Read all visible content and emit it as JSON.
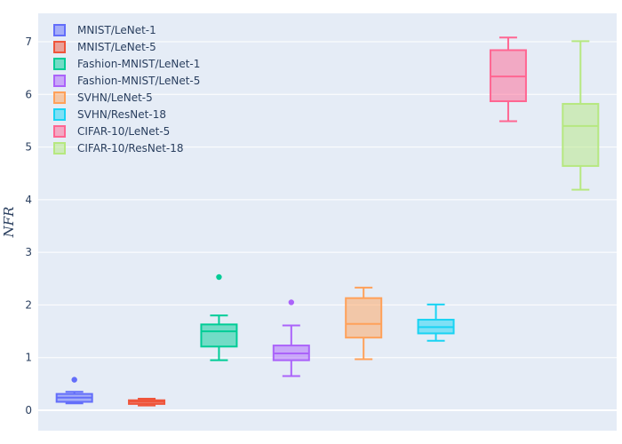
{
  "chart_data": {
    "type": "box",
    "title": "",
    "xlabel": "",
    "ylabel": "NFR",
    "ylim": [
      -0.35,
      7.5
    ],
    "y_ticks": [
      0,
      1,
      2,
      3,
      4,
      5,
      6,
      7
    ],
    "grid": true,
    "legend_position": "top-left",
    "series": [
      {
        "name": "MNIST/LeNet-1",
        "color": "#636efa",
        "min": 0.13,
        "q1": 0.16,
        "median": 0.24,
        "q3": 0.31,
        "max": 0.35,
        "outliers": [
          0.58
        ]
      },
      {
        "name": "MNIST/LeNet-5",
        "color": "#ef553b",
        "min": 0.09,
        "q1": 0.12,
        "median": 0.16,
        "q3": 0.19,
        "max": 0.22,
        "outliers": []
      },
      {
        "name": "Fashion-MNIST/LeNet-1",
        "color": "#00cc96",
        "min": 0.95,
        "q1": 1.21,
        "median": 1.5,
        "q3": 1.63,
        "max": 1.8,
        "outliers": [
          2.53
        ]
      },
      {
        "name": "Fashion-MNIST/LeNet-5",
        "color": "#ab63fa",
        "min": 0.65,
        "q1": 0.95,
        "median": 1.08,
        "q3": 1.23,
        "max": 1.61,
        "outliers": [
          2.05
        ]
      },
      {
        "name": "SVHN/LeNet-5",
        "color": "#ffa15a",
        "min": 0.97,
        "q1": 1.38,
        "median": 1.64,
        "q3": 2.13,
        "max": 2.33,
        "outliers": []
      },
      {
        "name": "SVHN/ResNet-18",
        "color": "#19d3f3",
        "min": 1.32,
        "q1": 1.46,
        "median": 1.58,
        "q3": 1.72,
        "max": 2.01,
        "outliers": []
      },
      {
        "name": "CIFAR-10/LeNet-5",
        "color": "#ff6692",
        "min": 5.49,
        "q1": 5.87,
        "median": 6.34,
        "q3": 6.84,
        "max": 7.08,
        "outliers": []
      },
      {
        "name": "CIFAR-10/ResNet-18",
        "color": "#b6e880",
        "min": 4.19,
        "q1": 4.64,
        "median": 5.4,
        "q3": 5.82,
        "max": 7.01,
        "outliers": []
      }
    ]
  }
}
